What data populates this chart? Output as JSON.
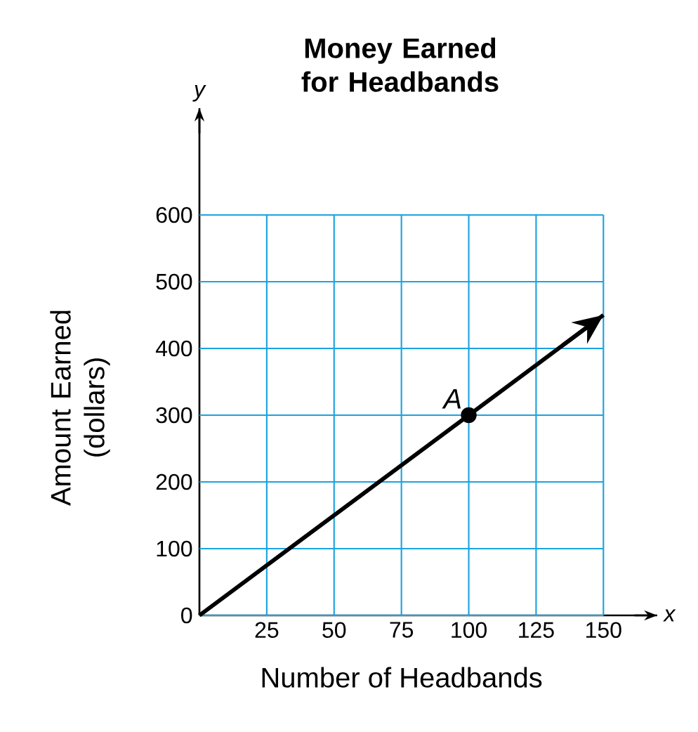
{
  "chart_data": {
    "type": "line",
    "title": "Money Earned for Headbands",
    "xlabel": "Number of Headbands",
    "ylabel": "Amount Earned (dollars)",
    "xlim": [
      0,
      170
    ],
    "ylim": [
      0,
      760
    ],
    "xticks": [
      25,
      50,
      75,
      100,
      125,
      150
    ],
    "yticks": [
      0,
      100,
      200,
      300,
      400,
      500,
      600
    ],
    "grid": true,
    "series": [
      {
        "color": "#000000",
        "x": [
          0,
          150
        ],
        "values": [
          0,
          450
        ]
      },
      {
        "type": "scatter",
        "marker": "circle",
        "color": "#000000",
        "x": [
          100
        ],
        "values": [
          300
        ]
      }
    ],
    "annotations": [
      {
        "text": "A",
        "x": 100,
        "y": 300
      },
      "x",
      "y"
    ]
  }
}
